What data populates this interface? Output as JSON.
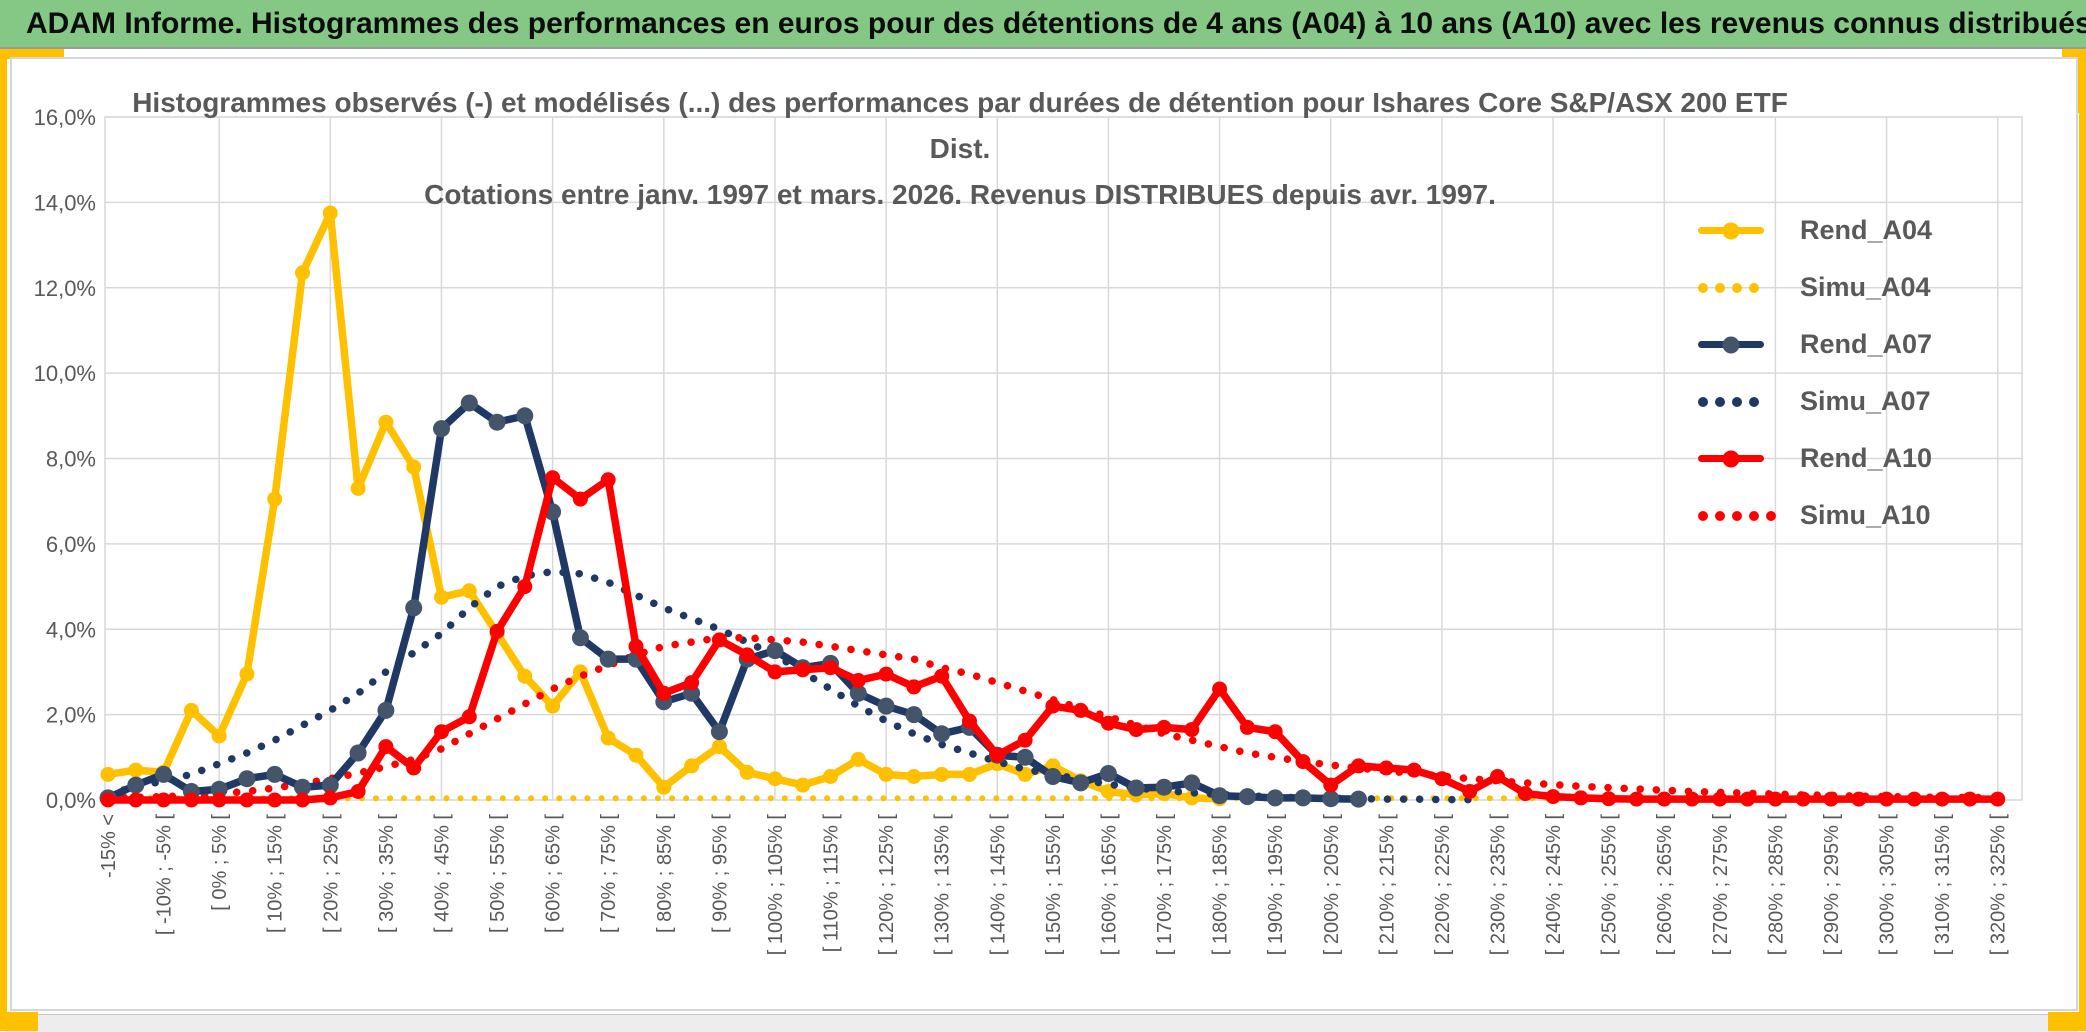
{
  "header": {
    "title": "ADAM Informe. Histogrammes des performances en euros pour des détentions de 4 ans (A04) à 10 ans (A10) avec les revenus connus distribués"
  },
  "chart_data": {
    "type": "line",
    "title_line1": "Histogrammes observés (-) et modélisés (...) des performances par durées de détention pour Ishares Core S&P/ASX 200 ETF Dist.",
    "title_line2": "Cotations entre janv. 1997 et mars. 2026. Revenus DISTRIBUES depuis avr. 1997.",
    "grid": true,
    "legend_position": "top-right",
    "y_axis": {
      "min": 0,
      "max": 16,
      "step": 2,
      "unit": "%",
      "tick_labels": [
        "0,0%",
        "2,0%",
        "4,0%",
        "6,0%",
        "8,0%",
        "10,0%",
        "12,0%",
        "14,0%",
        "16,0%"
      ]
    },
    "x_axis": {
      "bin_count": 69,
      "bin_width_pct": 5,
      "label_every_bins": 2,
      "gridline_every_bins": 4,
      "tick_labels": [
        "-15% <",
        "[ -10% ; -5% [",
        "[ 0% ; 5% [",
        "[ 10% ; 15% [",
        "[ 20% ; 25% [",
        "[ 30% ; 35% [",
        "[ 40% ; 45% [",
        "[ 50% ; 55% [",
        "[ 60% ; 65% [",
        "[ 70% ; 75% [",
        "[ 80% ; 85% [",
        "[ 90% ; 95% [",
        "[ 100% ; 105% [",
        "[ 110% ; 115% [",
        "[ 120% ; 125% [",
        "[ 130% ; 135% [",
        "[ 140% ; 145% [",
        "[ 150% ; 155% [",
        "[ 160% ; 165% [",
        "[ 170% ; 175% [",
        "[ 180% ; 185% [",
        "[ 190% ; 195% [",
        "[ 200% ; 205% [",
        "[ 210% ; 215% [",
        "[ 220% ; 225% [",
        "[ 230% ; 235% [",
        "[ 240% ; 245% [",
        "[ 250% ; 255% [",
        "[ 260% ; 265% [",
        "[ 270% ; 275% [",
        "[ 280% ; 285% [",
        "[ 290% ; 295% [",
        "[ 300% ; 305% [",
        "[ 310% ; 315% [",
        "[ 320% ; 325% ["
      ]
    },
    "colors": {
      "grid": "#D9D9D9",
      "axis_text": "#595959",
      "title_text": "#595959",
      "gold": "#FFC000",
      "navy": "#203864",
      "navy_marker": "#44546A",
      "red": "#FF0000",
      "header_green": "#85C785"
    },
    "series": [
      {
        "name": "Rend_A04",
        "style": "solid",
        "color": "#FFC000",
        "marker_color": "#FFC000",
        "markers": true,
        "values": [
          0.6,
          0.7,
          0.65,
          2.1,
          1.5,
          2.95,
          7.05,
          12.35,
          13.75,
          7.3,
          8.85,
          7.8,
          4.75,
          4.9,
          3.9,
          2.9,
          2.2,
          3.0,
          1.45,
          1.05,
          0.3,
          0.8,
          1.25,
          0.65,
          0.5,
          0.35,
          0.55,
          0.95,
          0.6,
          0.55,
          0.6,
          0.6,
          0.85,
          0.6,
          0.8,
          0.45,
          0.2,
          0.12,
          0.15,
          0.05,
          0.03,
          null,
          null,
          null,
          null,
          null,
          null,
          null,
          null,
          null,
          null,
          null,
          null,
          null,
          null,
          null,
          null,
          null,
          null,
          null,
          null,
          null,
          null,
          null,
          null,
          null,
          null,
          null,
          null
        ]
      },
      {
        "name": "Simu_A04",
        "style": "dotted",
        "color": "#FFC000",
        "marker_color": "#FFC000",
        "markers": false,
        "values": [
          0.04,
          0.04,
          0.04,
          0.04,
          0.04,
          0.04,
          0.04,
          0.04,
          0.04,
          0.04,
          0.04,
          0.04,
          0.04,
          0.04,
          0.04,
          0.04,
          0.04,
          0.04,
          0.04,
          0.04,
          0.04,
          0.04,
          0.04,
          0.04,
          0.04,
          0.04,
          0.04,
          0.04,
          0.04,
          0.04,
          0.04,
          0.04,
          0.04,
          0.04,
          0.04,
          0.04,
          0.04,
          0.04,
          0.04,
          0.04,
          0.04,
          0.04,
          0.04,
          0.04,
          0.04,
          0.04,
          0.04,
          0.04,
          0.04,
          0.04,
          0.04,
          0.04,
          0.04,
          0.04,
          0.04,
          0.04,
          0.04,
          0.04,
          0.04,
          0.04,
          0.04,
          0.04,
          0.04,
          0.04,
          0.04,
          0.04,
          0.04,
          0.04,
          0.04
        ]
      },
      {
        "name": "Rend_A07",
        "style": "solid",
        "color": "#203864",
        "marker_color": "#44546A",
        "markers": true,
        "values": [
          0.05,
          0.35,
          0.6,
          0.2,
          0.25,
          0.5,
          0.6,
          0.3,
          0.35,
          1.1,
          2.1,
          4.5,
          8.7,
          9.3,
          8.85,
          9.0,
          6.75,
          3.8,
          3.3,
          3.3,
          2.3,
          2.5,
          1.6,
          3.3,
          3.5,
          3.1,
          3.2,
          2.5,
          2.2,
          2.0,
          1.55,
          1.7,
          1.05,
          1.0,
          0.55,
          0.4,
          0.62,
          0.28,
          0.3,
          0.4,
          0.1,
          0.08,
          0.05,
          0.05,
          0.03,
          0.02,
          null,
          null,
          null,
          null,
          null,
          null,
          null,
          null,
          null,
          null,
          null,
          null,
          null,
          null,
          null,
          null,
          null,
          null,
          null,
          null,
          null,
          null,
          null
        ]
      },
      {
        "name": "Simu_A07",
        "style": "dotted",
        "color": "#203864",
        "marker_color": "#203864",
        "markers": false,
        "values": [
          0.15,
          0.3,
          0.45,
          0.6,
          0.85,
          1.1,
          1.4,
          1.75,
          2.1,
          2.5,
          3.0,
          3.45,
          3.9,
          4.5,
          5.0,
          5.25,
          5.35,
          5.3,
          5.1,
          4.8,
          4.5,
          4.25,
          4.0,
          3.7,
          3.4,
          3.0,
          2.6,
          2.2,
          1.85,
          1.55,
          1.3,
          1.1,
          0.9,
          0.72,
          0.6,
          0.48,
          0.37,
          0.28,
          0.22,
          0.17,
          0.13,
          0.1,
          0.07,
          0.05,
          0.04,
          0.03,
          0.02,
          0.02,
          0.01,
          0.01,
          null,
          null,
          null,
          null,
          null,
          null,
          null,
          null,
          null,
          null,
          null,
          null,
          null,
          null,
          null,
          null,
          null,
          null,
          null
        ]
      },
      {
        "name": "Rend_A10",
        "style": "solid",
        "color": "#FF0000",
        "marker_color": "#FF0000",
        "markers": true,
        "values": [
          0.0,
          0.0,
          0.0,
          0.0,
          0.0,
          0.0,
          0.0,
          0.0,
          0.05,
          0.2,
          1.25,
          0.75,
          1.6,
          1.95,
          3.95,
          5.0,
          7.55,
          7.05,
          7.5,
          3.6,
          2.5,
          2.75,
          3.75,
          3.4,
          3.0,
          3.05,
          3.1,
          2.8,
          2.95,
          2.65,
          2.9,
          1.85,
          1.05,
          1.4,
          2.2,
          2.1,
          1.8,
          1.65,
          1.7,
          1.65,
          2.6,
          1.7,
          1.6,
          0.9,
          0.35,
          0.8,
          0.75,
          0.7,
          0.5,
          0.2,
          0.55,
          0.15,
          0.08,
          0.05,
          0.03,
          0.02,
          0.02,
          0.02,
          0.02,
          0.02,
          0.02,
          0.02,
          0.02,
          0.02,
          0.02,
          0.02,
          0.02,
          0.02,
          0.02
        ]
      },
      {
        "name": "Simu_A10",
        "style": "dotted",
        "color": "#FF0000",
        "marker_color": "#FF0000",
        "markers": false,
        "values": [
          0.05,
          0.06,
          0.08,
          0.1,
          0.15,
          0.2,
          0.28,
          0.38,
          0.5,
          0.63,
          0.78,
          0.95,
          1.2,
          1.55,
          1.9,
          2.25,
          2.6,
          2.9,
          3.15,
          3.4,
          3.6,
          3.7,
          3.8,
          3.8,
          3.75,
          3.7,
          3.6,
          3.5,
          3.4,
          3.3,
          3.1,
          2.95,
          2.75,
          2.55,
          2.35,
          2.15,
          1.95,
          1.75,
          1.55,
          1.4,
          1.25,
          1.1,
          1.0,
          0.9,
          0.82,
          0.75,
          0.68,
          0.62,
          0.56,
          0.5,
          0.45,
          0.4,
          0.36,
          0.32,
          0.29,
          0.26,
          0.23,
          0.2,
          0.18,
          0.16,
          0.14,
          0.12,
          0.11,
          0.09,
          0.08,
          0.07,
          0.06,
          0.06,
          0.05
        ]
      }
    ]
  }
}
